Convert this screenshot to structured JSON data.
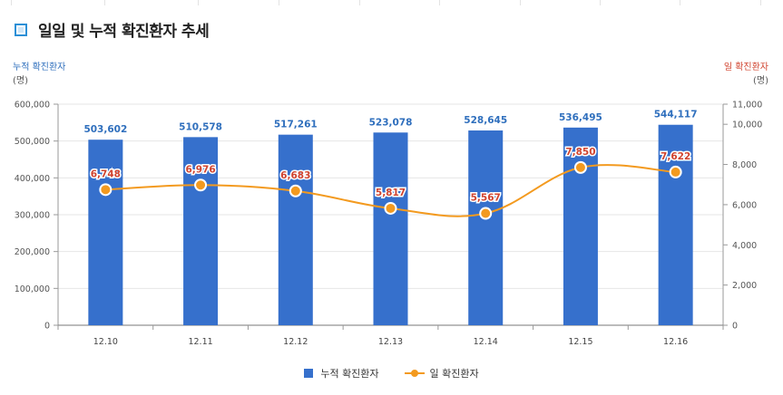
{
  "header": {
    "title": "일일 및 누적 확진환자 추세"
  },
  "chart_data": {
    "type": "bar",
    "categories": [
      "12.10",
      "12.11",
      "12.12",
      "12.13",
      "12.14",
      "12.15",
      "12.16"
    ],
    "left_axis": {
      "label": "누적 확진환자",
      "unit": "(명)",
      "ylim": [
        0,
        600000
      ],
      "ticks": [
        "0",
        "100,000",
        "200,000",
        "300,000",
        "400,000",
        "500,000",
        "600,000"
      ]
    },
    "right_axis": {
      "label": "일 확진환자",
      "unit": "(명)",
      "ylim": [
        0,
        11000
      ],
      "ticks": [
        "0",
        "2,000",
        "4,000",
        "6,000",
        "8,000",
        "10,000",
        "11,000"
      ]
    },
    "series": [
      {
        "name": "누적 확진환자",
        "type": "bar",
        "axis": "left",
        "values": [
          503602,
          510578,
          517261,
          523078,
          528645,
          536495,
          544117
        ],
        "labels": [
          "503,602",
          "510,578",
          "517,261",
          "523,078",
          "528,645",
          "536,495",
          "544,117"
        ]
      },
      {
        "name": "일 확진환자",
        "type": "line",
        "axis": "right",
        "smooth": true,
        "values": [
          6748,
          6976,
          6683,
          5817,
          5567,
          7850,
          7622
        ],
        "labels": [
          "6,748",
          "6,976",
          "6,683",
          "5,817",
          "5,567",
          "7,850",
          "7,622"
        ]
      }
    ],
    "grid": true,
    "legend_position": "bottom-center",
    "colors": {
      "bar": "#3670cc",
      "line": "#f39a1f",
      "bar_label": "#2f6fbd",
      "line_label": "#d0432e",
      "grid": "#e6e6e6"
    }
  }
}
